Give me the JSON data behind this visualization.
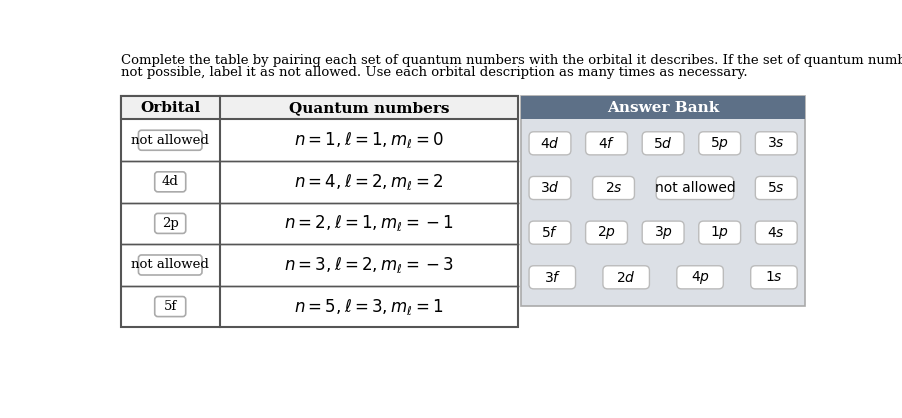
{
  "title_line1": "Complete the table by pairing each set of quantum numbers with the orbital it describes. If the set of quantum numbers is",
  "title_line2": "not possible, label it as not allowed. Use each orbital description as many times as necessary.",
  "table_headers": [
    "Orbital",
    "Quantum numbers"
  ],
  "orbital_labels": [
    "not allowed",
    "4d",
    "2p",
    "not allowed",
    "5f"
  ],
  "equations": [
    "$n = 1, \\ell = 1, m_\\ell = 0$",
    "$n = 4, \\ell = 2, m_\\ell = 2$",
    "$n = 2, \\ell = 1, m_\\ell = -1$",
    "$n = 3, \\ell = 2, m_\\ell = -3$",
    "$n = 5, \\ell = 3, m_\\ell = 1$"
  ],
  "answer_bank_title": "Answer Bank",
  "answer_bank_rows": [
    [
      "4d",
      "4f",
      "5d",
      "5p",
      "3s"
    ],
    [
      "3d",
      "2s",
      "not allowed",
      "5s"
    ],
    [
      "5f",
      "2p",
      "3p",
      "1p",
      "4s"
    ],
    [
      "3f",
      "2d",
      "4p",
      "1s"
    ]
  ],
  "answer_bank_header_color": "#5d7087",
  "answer_bank_bg": "#dce0e6",
  "table_header_bg": "#f0f0f0",
  "table_border_color": "#555555",
  "white": "#ffffff",
  "text_color": "#000000",
  "box_edge_color": "#aaaaaa",
  "ab_box_edge_color": "#bbbbbb"
}
